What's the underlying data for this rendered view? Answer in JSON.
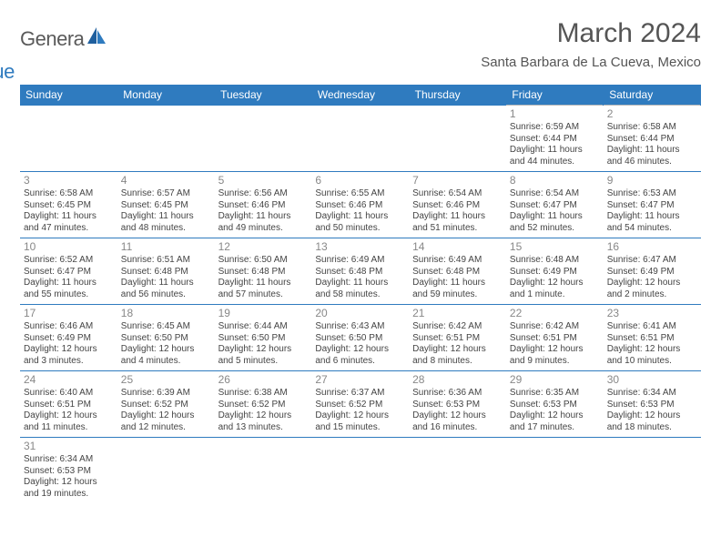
{
  "logo": {
    "part1": "Genera",
    "part2": "lue"
  },
  "title": "March 2024",
  "location": "Santa Barbara de La Cueva, Mexico",
  "colors": {
    "header_bg": "#2f7bbf",
    "header_text": "#ffffff",
    "grid_line": "#b8b8b8",
    "week_line": "#2f7bbf",
    "daynum": "#888888",
    "body_text": "#444444"
  },
  "day_headers": [
    "Sunday",
    "Monday",
    "Tuesday",
    "Wednesday",
    "Thursday",
    "Friday",
    "Saturday"
  ],
  "weeks": [
    [
      null,
      null,
      null,
      null,
      null,
      {
        "n": "1",
        "sr": "Sunrise: 6:59 AM",
        "ss": "Sunset: 6:44 PM",
        "d1": "Daylight: 11 hours",
        "d2": "and 44 minutes."
      },
      {
        "n": "2",
        "sr": "Sunrise: 6:58 AM",
        "ss": "Sunset: 6:44 PM",
        "d1": "Daylight: 11 hours",
        "d2": "and 46 minutes."
      }
    ],
    [
      {
        "n": "3",
        "sr": "Sunrise: 6:58 AM",
        "ss": "Sunset: 6:45 PM",
        "d1": "Daylight: 11 hours",
        "d2": "and 47 minutes."
      },
      {
        "n": "4",
        "sr": "Sunrise: 6:57 AM",
        "ss": "Sunset: 6:45 PM",
        "d1": "Daylight: 11 hours",
        "d2": "and 48 minutes."
      },
      {
        "n": "5",
        "sr": "Sunrise: 6:56 AM",
        "ss": "Sunset: 6:46 PM",
        "d1": "Daylight: 11 hours",
        "d2": "and 49 minutes."
      },
      {
        "n": "6",
        "sr": "Sunrise: 6:55 AM",
        "ss": "Sunset: 6:46 PM",
        "d1": "Daylight: 11 hours",
        "d2": "and 50 minutes."
      },
      {
        "n": "7",
        "sr": "Sunrise: 6:54 AM",
        "ss": "Sunset: 6:46 PM",
        "d1": "Daylight: 11 hours",
        "d2": "and 51 minutes."
      },
      {
        "n": "8",
        "sr": "Sunrise: 6:54 AM",
        "ss": "Sunset: 6:47 PM",
        "d1": "Daylight: 11 hours",
        "d2": "and 52 minutes."
      },
      {
        "n": "9",
        "sr": "Sunrise: 6:53 AM",
        "ss": "Sunset: 6:47 PM",
        "d1": "Daylight: 11 hours",
        "d2": "and 54 minutes."
      }
    ],
    [
      {
        "n": "10",
        "sr": "Sunrise: 6:52 AM",
        "ss": "Sunset: 6:47 PM",
        "d1": "Daylight: 11 hours",
        "d2": "and 55 minutes."
      },
      {
        "n": "11",
        "sr": "Sunrise: 6:51 AM",
        "ss": "Sunset: 6:48 PM",
        "d1": "Daylight: 11 hours",
        "d2": "and 56 minutes."
      },
      {
        "n": "12",
        "sr": "Sunrise: 6:50 AM",
        "ss": "Sunset: 6:48 PM",
        "d1": "Daylight: 11 hours",
        "d2": "and 57 minutes."
      },
      {
        "n": "13",
        "sr": "Sunrise: 6:49 AM",
        "ss": "Sunset: 6:48 PM",
        "d1": "Daylight: 11 hours",
        "d2": "and 58 minutes."
      },
      {
        "n": "14",
        "sr": "Sunrise: 6:49 AM",
        "ss": "Sunset: 6:48 PM",
        "d1": "Daylight: 11 hours",
        "d2": "and 59 minutes."
      },
      {
        "n": "15",
        "sr": "Sunrise: 6:48 AM",
        "ss": "Sunset: 6:49 PM",
        "d1": "Daylight: 12 hours",
        "d2": "and 1 minute."
      },
      {
        "n": "16",
        "sr": "Sunrise: 6:47 AM",
        "ss": "Sunset: 6:49 PM",
        "d1": "Daylight: 12 hours",
        "d2": "and 2 minutes."
      }
    ],
    [
      {
        "n": "17",
        "sr": "Sunrise: 6:46 AM",
        "ss": "Sunset: 6:49 PM",
        "d1": "Daylight: 12 hours",
        "d2": "and 3 minutes."
      },
      {
        "n": "18",
        "sr": "Sunrise: 6:45 AM",
        "ss": "Sunset: 6:50 PM",
        "d1": "Daylight: 12 hours",
        "d2": "and 4 minutes."
      },
      {
        "n": "19",
        "sr": "Sunrise: 6:44 AM",
        "ss": "Sunset: 6:50 PM",
        "d1": "Daylight: 12 hours",
        "d2": "and 5 minutes."
      },
      {
        "n": "20",
        "sr": "Sunrise: 6:43 AM",
        "ss": "Sunset: 6:50 PM",
        "d1": "Daylight: 12 hours",
        "d2": "and 6 minutes."
      },
      {
        "n": "21",
        "sr": "Sunrise: 6:42 AM",
        "ss": "Sunset: 6:51 PM",
        "d1": "Daylight: 12 hours",
        "d2": "and 8 minutes."
      },
      {
        "n": "22",
        "sr": "Sunrise: 6:42 AM",
        "ss": "Sunset: 6:51 PM",
        "d1": "Daylight: 12 hours",
        "d2": "and 9 minutes."
      },
      {
        "n": "23",
        "sr": "Sunrise: 6:41 AM",
        "ss": "Sunset: 6:51 PM",
        "d1": "Daylight: 12 hours",
        "d2": "and 10 minutes."
      }
    ],
    [
      {
        "n": "24",
        "sr": "Sunrise: 6:40 AM",
        "ss": "Sunset: 6:51 PM",
        "d1": "Daylight: 12 hours",
        "d2": "and 11 minutes."
      },
      {
        "n": "25",
        "sr": "Sunrise: 6:39 AM",
        "ss": "Sunset: 6:52 PM",
        "d1": "Daylight: 12 hours",
        "d2": "and 12 minutes."
      },
      {
        "n": "26",
        "sr": "Sunrise: 6:38 AM",
        "ss": "Sunset: 6:52 PM",
        "d1": "Daylight: 12 hours",
        "d2": "and 13 minutes."
      },
      {
        "n": "27",
        "sr": "Sunrise: 6:37 AM",
        "ss": "Sunset: 6:52 PM",
        "d1": "Daylight: 12 hours",
        "d2": "and 15 minutes."
      },
      {
        "n": "28",
        "sr": "Sunrise: 6:36 AM",
        "ss": "Sunset: 6:53 PM",
        "d1": "Daylight: 12 hours",
        "d2": "and 16 minutes."
      },
      {
        "n": "29",
        "sr": "Sunrise: 6:35 AM",
        "ss": "Sunset: 6:53 PM",
        "d1": "Daylight: 12 hours",
        "d2": "and 17 minutes."
      },
      {
        "n": "30",
        "sr": "Sunrise: 6:34 AM",
        "ss": "Sunset: 6:53 PM",
        "d1": "Daylight: 12 hours",
        "d2": "and 18 minutes."
      }
    ],
    [
      {
        "n": "31",
        "sr": "Sunrise: 6:34 AM",
        "ss": "Sunset: 6:53 PM",
        "d1": "Daylight: 12 hours",
        "d2": "and 19 minutes."
      },
      null,
      null,
      null,
      null,
      null,
      null
    ]
  ]
}
